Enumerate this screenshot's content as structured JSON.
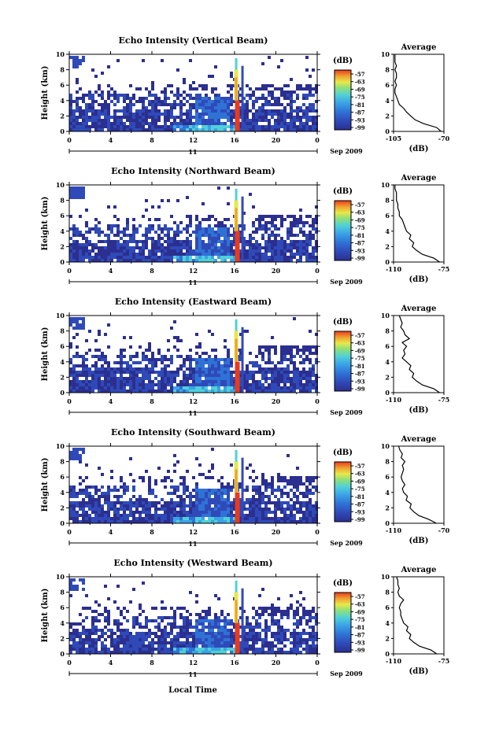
{
  "chart_data": [
    {
      "type": "heatmap",
      "title": "Echo Intensity (Vertical Beam)",
      "ylabel": "Height (km)",
      "ylim": [
        0,
        10
      ],
      "yticks": [
        "0",
        "2",
        "4",
        "6",
        "8",
        "10"
      ],
      "xticks": [
        "0",
        "4",
        "8",
        "12",
        "16",
        "20",
        "0"
      ],
      "xlim": [
        0,
        24
      ],
      "date_day": "11",
      "date_month_year": "Sep 2009",
      "colorbar": {
        "unit": "(dB)",
        "levels": [
          "-57",
          "-63",
          "-69",
          "-75",
          "-81",
          "-87",
          "-93",
          "-99"
        ]
      },
      "profile": {
        "title": "Average",
        "xlabel": "(dB)",
        "xticks": [
          "-105",
          "-70"
        ],
        "xlim": [
          -105,
          -70
        ],
        "heights": [
          0,
          0.5,
          1,
          1.5,
          2,
          2.5,
          3,
          3.5,
          4,
          4.5,
          5,
          5.5,
          6,
          6.5,
          7,
          7.5,
          8,
          8.5,
          9,
          9.5,
          10
        ],
        "values": [
          -72,
          -75,
          -84,
          -90,
          -93,
          -96,
          -98,
          -101,
          -102,
          -103,
          -104,
          -104,
          -103,
          -104,
          -103,
          -103,
          -104,
          -103,
          -104,
          -104,
          -104
        ]
      }
    },
    {
      "type": "heatmap",
      "title": "Echo Intensity (Northward Beam)",
      "ylabel": "Height (km)",
      "ylim": [
        0,
        10
      ],
      "yticks": [
        "0",
        "2",
        "4",
        "6",
        "8",
        "10"
      ],
      "xticks": [
        "0",
        "4",
        "8",
        "12",
        "16",
        "20",
        "0"
      ],
      "xlim": [
        0,
        24
      ],
      "date_day": "11",
      "date_month_year": "Sep 2009",
      "colorbar": {
        "unit": "(dB)",
        "levels": [
          "-57",
          "-63",
          "-69",
          "-75",
          "-81",
          "-87",
          "-93",
          "-99"
        ]
      },
      "profile": {
        "title": "Average",
        "xlabel": "(dB)",
        "xticks": [
          "-110",
          "-75"
        ],
        "xlim": [
          -110,
          -75
        ],
        "heights": [
          0,
          0.5,
          1,
          1.5,
          2,
          2.5,
          3,
          3.5,
          4,
          4.5,
          5,
          5.5,
          6,
          6.5,
          7,
          7.5,
          8,
          8.5,
          9,
          9.5,
          10
        ],
        "values": [
          -78,
          -82,
          -90,
          -94,
          -97,
          -96,
          -99,
          -98,
          -101,
          -102,
          -103,
          -104,
          -106,
          -106,
          -107,
          -107,
          -108,
          -108,
          -108,
          -109,
          -109
        ]
      }
    },
    {
      "type": "heatmap",
      "title": "Echo Intensity (Eastward Beam)",
      "ylabel": "Height (km)",
      "ylim": [
        0,
        10
      ],
      "yticks": [
        "0",
        "2",
        "4",
        "6",
        "8",
        "10"
      ],
      "xticks": [
        "0",
        "4",
        "8",
        "12",
        "16",
        "20",
        "0"
      ],
      "xlim": [
        0,
        24
      ],
      "date_day": "11",
      "date_month_year": "Sep 2009",
      "colorbar": {
        "unit": "(dB)",
        "levels": [
          "-57",
          "-63",
          "-69",
          "-75",
          "-81",
          "-87",
          "-93",
          "-99"
        ]
      },
      "profile": {
        "title": "Average",
        "xlabel": "(dB)",
        "xticks": [
          "-110",
          "-75"
        ],
        "xlim": [
          -110,
          -75
        ],
        "heights": [
          0,
          0.5,
          1,
          1.5,
          2,
          2.5,
          3,
          3.5,
          4,
          4.5,
          5,
          5.5,
          6,
          6.5,
          7,
          7.5,
          8,
          8.5,
          9,
          9.5,
          10
        ],
        "values": [
          -78,
          -82,
          -90,
          -94,
          -97,
          -96,
          -99,
          -98,
          -101,
          -104,
          -102,
          -103,
          -101,
          -104,
          -99,
          -102,
          -103,
          -105,
          -104,
          -105,
          -106
        ]
      }
    },
    {
      "type": "heatmap",
      "title": "Echo Intensity (Southward Beam)",
      "ylabel": "Height (km)",
      "ylim": [
        0,
        10
      ],
      "yticks": [
        "0",
        "2",
        "4",
        "6",
        "8",
        "10"
      ],
      "xticks": [
        "0",
        "4",
        "8",
        "12",
        "16",
        "20",
        "0"
      ],
      "xlim": [
        0,
        24
      ],
      "date_day": "11",
      "date_month_year": "Sep 2009",
      "colorbar": {
        "unit": "(dB)",
        "levels": [
          "-57",
          "-63",
          "-69",
          "-75",
          "-81",
          "-87",
          "-93",
          "-99"
        ]
      },
      "profile": {
        "title": "Average",
        "xlabel": "(dB)",
        "xticks": [
          "-110",
          "-70"
        ],
        "xlim": [
          -110,
          -70
        ],
        "heights": [
          0,
          0.5,
          1,
          1.5,
          2,
          2.5,
          3,
          3.5,
          4,
          4.5,
          5,
          5.5,
          6,
          6.5,
          7,
          7.5,
          8,
          8.5,
          9,
          9.5,
          10
        ],
        "values": [
          -76,
          -82,
          -90,
          -94,
          -97,
          -96,
          -100,
          -99,
          -102,
          -103,
          -101,
          -103,
          -104,
          -103,
          -102,
          -103,
          -101,
          -104,
          -103,
          -105,
          -106
        ]
      }
    },
    {
      "type": "heatmap",
      "title": "Echo Intensity (Westward Beam)",
      "ylabel": "Height (km)",
      "ylim": [
        0,
        10
      ],
      "yticks": [
        "0",
        "2",
        "4",
        "6",
        "8",
        "10"
      ],
      "xticks": [
        "0",
        "4",
        "8",
        "12",
        "16",
        "20",
        "0"
      ],
      "xlim": [
        0,
        24
      ],
      "date_day": "11",
      "date_month_year": "Sep 2009",
      "colorbar": {
        "unit": "(dB)",
        "levels": [
          "-57",
          "-63",
          "-69",
          "-75",
          "-81",
          "-87",
          "-93",
          "-99"
        ]
      },
      "profile": {
        "title": "Average",
        "xlabel": "(dB)",
        "xticks": [
          "-110",
          "-75"
        ],
        "xlim": [
          -110,
          -75
        ],
        "heights": [
          0,
          0.5,
          1,
          1.5,
          2,
          2.5,
          3,
          3.5,
          4,
          4.5,
          5,
          5.5,
          6,
          6.5,
          7,
          7.5,
          8,
          8.5,
          9,
          9.5,
          10
        ],
        "values": [
          -80,
          -84,
          -92,
          -96,
          -99,
          -98,
          -101,
          -100,
          -103,
          -104,
          -105,
          -105,
          -106,
          -105,
          -103,
          -106,
          -107,
          -106,
          -107,
          -107,
          -108
        ]
      }
    }
  ],
  "xaxis_label": "Local Time",
  "colors": {
    "scale": [
      "#2b2f8f",
      "#2f4ab8",
      "#2f72d6",
      "#3ba3e6",
      "#4fd0d8",
      "#8ee07a",
      "#e8e84a",
      "#f0a030",
      "#e83a1c"
    ]
  }
}
